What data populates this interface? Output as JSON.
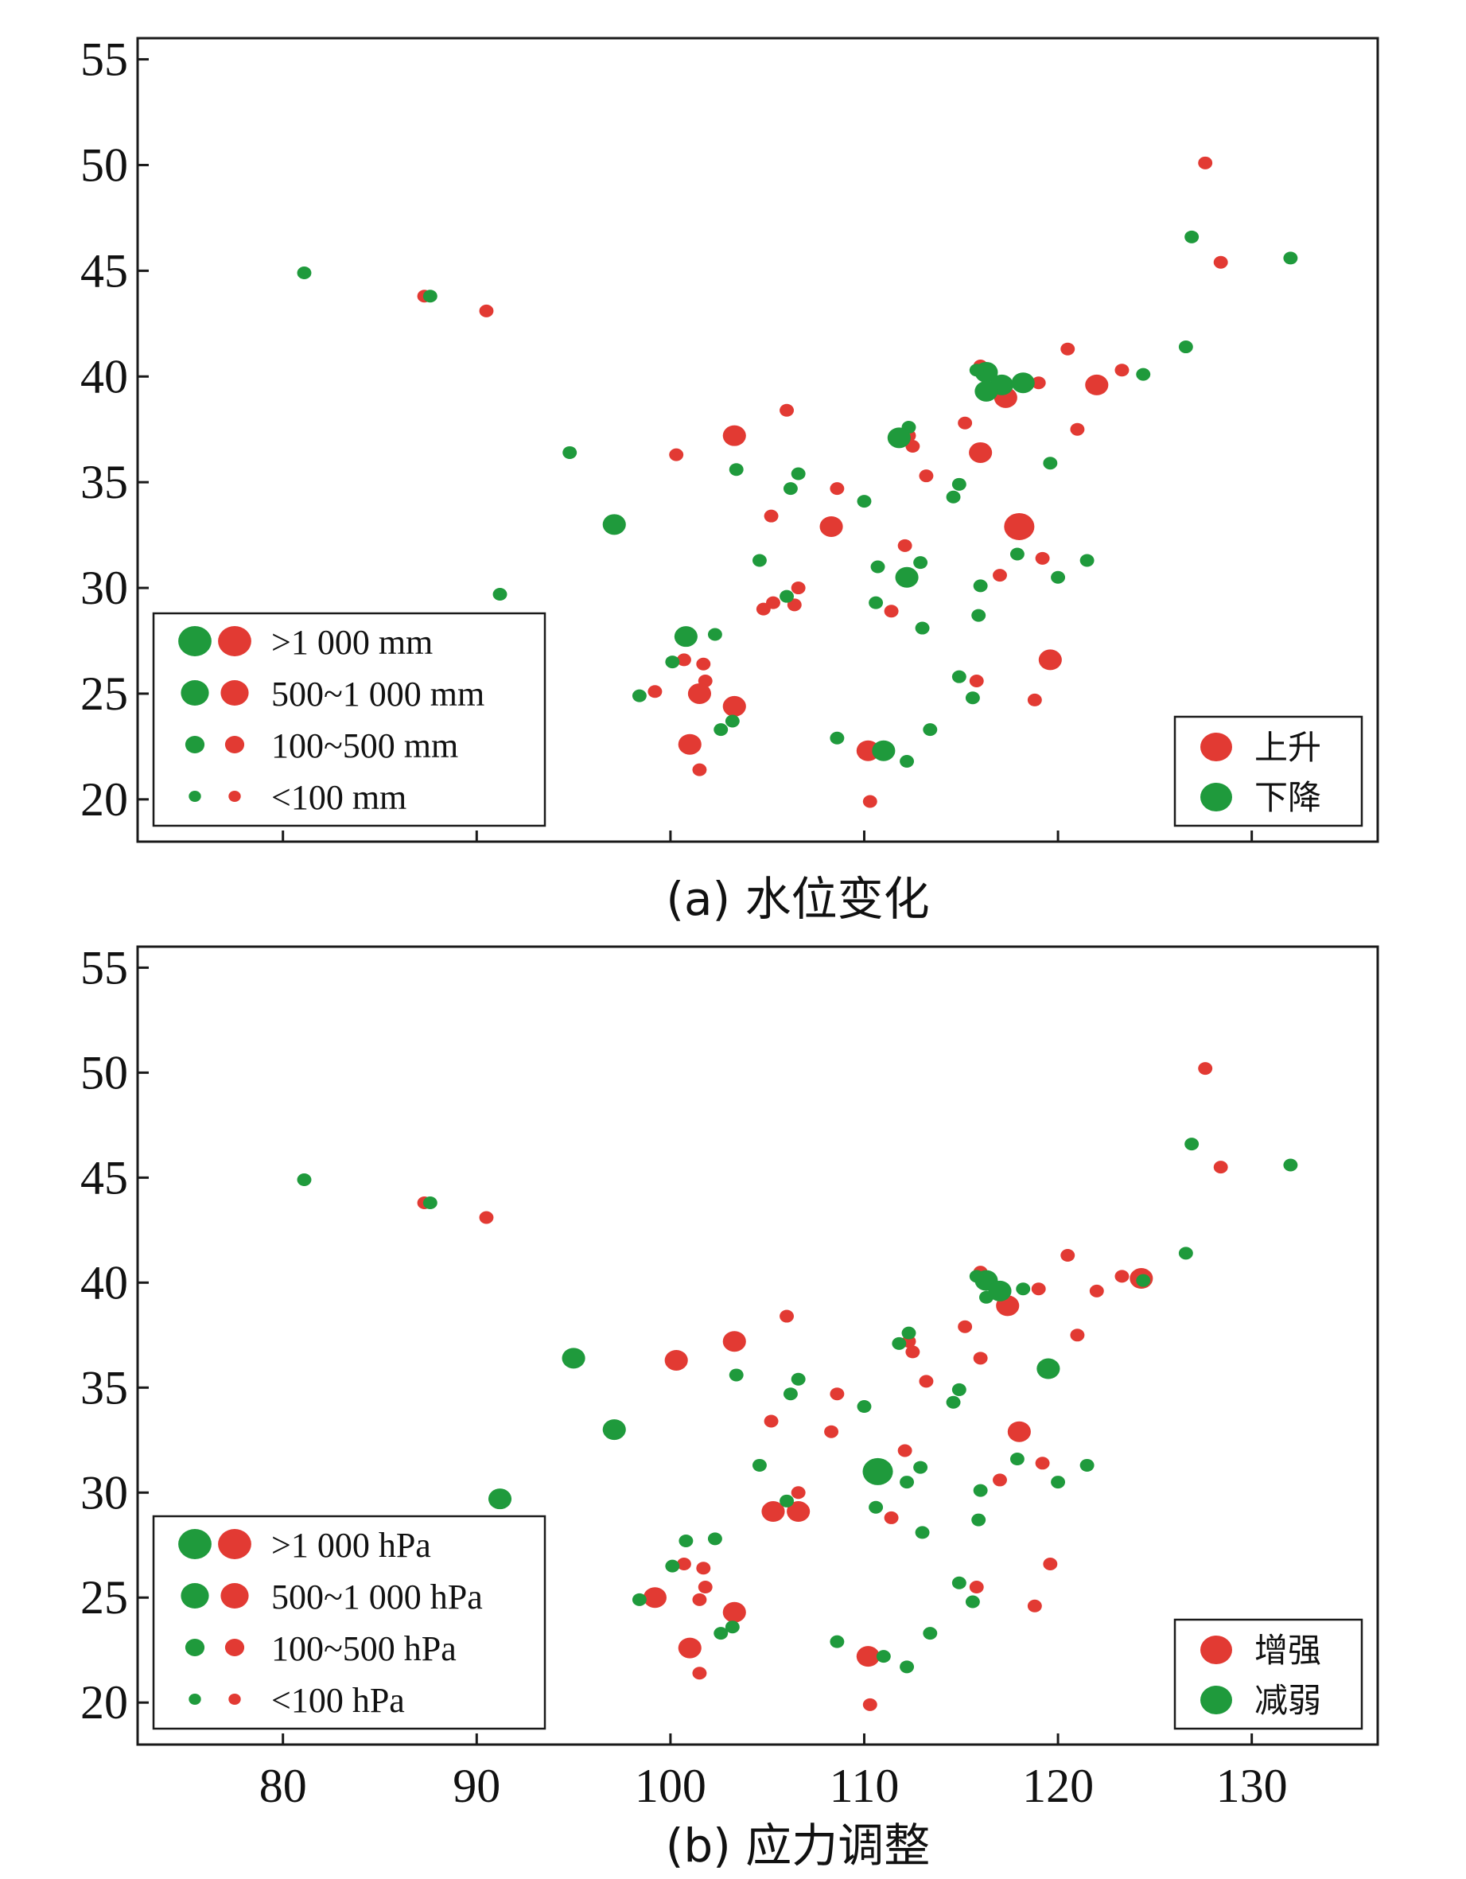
{
  "colors": {
    "red": "#e23a33",
    "green": "#1f9a3c",
    "frame": "#1a1a1a"
  },
  "shared_axes": {
    "x_ticks": [
      "80",
      "90",
      "100",
      "110",
      "120",
      "130"
    ],
    "y_ticks": [
      "20",
      "25",
      "30",
      "35",
      "40",
      "45",
      "50",
      "55"
    ],
    "xlim": [
      72.5,
      136.5
    ],
    "ylim": [
      18,
      56
    ]
  },
  "chart_data": [
    {
      "type": "scatter",
      "panel": "a",
      "caption": "(a) 水位变化",
      "xlim": [
        72.5,
        136.5
      ],
      "ylim": [
        18,
        56
      ],
      "size_legend": {
        "position": "bottom-left",
        "labels": [
          ">1 000 mm",
          "500~1 000 mm",
          "100~500 mm",
          "<100 mm"
        ]
      },
      "color_legend": {
        "position": "bottom-right",
        "labels": [
          "上升",
          "下降"
        ]
      },
      "series": [
        {
          "name": "上升",
          "color": "red",
          "points": [
            [
              127.6,
              50.1,
              0
            ],
            [
              128.4,
              45.4,
              0
            ],
            [
              87.3,
              43.8,
              0
            ],
            [
              90.5,
              43.1,
              0
            ],
            [
              120.5,
              41.3,
              0
            ],
            [
              123.3,
              40.3,
              0
            ],
            [
              122,
              39.6,
              1
            ],
            [
              117.3,
              39,
              1
            ],
            [
              119,
              39.7,
              0
            ],
            [
              106,
              38.4,
              0
            ],
            [
              103.3,
              37.2,
              1
            ],
            [
              112.3,
              37.2,
              0
            ],
            [
              121,
              37.5,
              0
            ],
            [
              100.3,
              36.3,
              0
            ],
            [
              112.5,
              36.7,
              0
            ],
            [
              116,
              36.4,
              1
            ],
            [
              115.2,
              37.8,
              0
            ],
            [
              113.2,
              35.3,
              0
            ],
            [
              108.6,
              34.7,
              0
            ],
            [
              105.2,
              33.4,
              0
            ],
            [
              108.3,
              32.9,
              1
            ],
            [
              118,
              32.9,
              2
            ],
            [
              112.1,
              32,
              0
            ],
            [
              119.2,
              31.4,
              0
            ],
            [
              117,
              30.6,
              0
            ],
            [
              106.6,
              30,
              0
            ],
            [
              105.3,
              29.3,
              0
            ],
            [
              104.8,
              29,
              0
            ],
            [
              106.4,
              29.2,
              0
            ],
            [
              111.4,
              28.9,
              0
            ],
            [
              119.6,
              26.6,
              1
            ],
            [
              100.7,
              26.6,
              0
            ],
            [
              101.7,
              26.4,
              0
            ],
            [
              101.8,
              25.6,
              0
            ],
            [
              115.8,
              25.6,
              0
            ],
            [
              99.2,
              25.1,
              0
            ],
            [
              101.5,
              25,
              1
            ],
            [
              103.3,
              24.4,
              1
            ],
            [
              118.8,
              24.7,
              0
            ],
            [
              101,
              22.6,
              1
            ],
            [
              110.2,
              22.3,
              1
            ],
            [
              101.5,
              21.4,
              0
            ],
            [
              110.3,
              19.9,
              0
            ],
            [
              116,
              40.5,
              0
            ]
          ]
        },
        {
          "name": "下降",
          "color": "green",
          "points": [
            [
              81.1,
              44.9,
              0
            ],
            [
              87.6,
              43.8,
              0
            ],
            [
              126.9,
              46.6,
              0
            ],
            [
              132,
              45.6,
              0
            ],
            [
              126.6,
              41.4,
              0
            ],
            [
              124.4,
              40.1,
              0
            ],
            [
              116.3,
              40.2,
              1
            ],
            [
              117.1,
              39.6,
              1
            ],
            [
              118.2,
              39.7,
              1
            ],
            [
              116.3,
              39.3,
              1
            ],
            [
              115.8,
              40.3,
              0
            ],
            [
              112.3,
              37.6,
              0
            ],
            [
              111.8,
              37.1,
              1
            ],
            [
              94.8,
              36.4,
              0
            ],
            [
              103.4,
              35.6,
              0
            ],
            [
              106.6,
              35.4,
              0
            ],
            [
              106.2,
              34.7,
              0
            ],
            [
              114.9,
              34.9,
              0
            ],
            [
              114.6,
              34.3,
              0
            ],
            [
              110,
              34.1,
              0
            ],
            [
              119.6,
              35.9,
              0
            ],
            [
              97.1,
              33,
              1
            ],
            [
              104.6,
              31.3,
              0
            ],
            [
              112.9,
              31.2,
              0
            ],
            [
              110.7,
              31,
              0
            ],
            [
              112.2,
              30.5,
              1
            ],
            [
              116,
              30.1,
              0
            ],
            [
              121.5,
              31.3,
              0
            ],
            [
              120,
              30.5,
              0
            ],
            [
              117.9,
              31.6,
              0
            ],
            [
              106,
              29.6,
              0
            ],
            [
              110.6,
              29.3,
              0
            ],
            [
              115.9,
              28.7,
              0
            ],
            [
              113,
              28.1,
              0
            ],
            [
              100.8,
              27.7,
              1
            ],
            [
              102.3,
              27.8,
              0
            ],
            [
              100.1,
              26.5,
              0
            ],
            [
              98.4,
              24.9,
              0
            ],
            [
              114.9,
              25.8,
              0
            ],
            [
              115.6,
              24.8,
              0
            ],
            [
              102.6,
              23.3,
              0
            ],
            [
              103.2,
              23.7,
              0
            ],
            [
              113.4,
              23.3,
              0
            ],
            [
              108.6,
              22.9,
              0
            ],
            [
              111,
              22.3,
              1
            ],
            [
              112.2,
              21.8,
              0
            ],
            [
              91.2,
              29.7,
              0
            ]
          ]
        }
      ]
    },
    {
      "type": "scatter",
      "panel": "b",
      "caption": "(b) 应力调整",
      "xlim": [
        72.5,
        136.5
      ],
      "ylim": [
        18,
        56
      ],
      "size_legend": {
        "position": "bottom-left",
        "labels": [
          ">1 000 hPa",
          "500~1 000 hPa",
          "100~500 hPa",
          "<100 hPa"
        ]
      },
      "color_legend": {
        "position": "bottom-right",
        "labels": [
          "增强",
          "减弱"
        ]
      },
      "series": [
        {
          "name": "增强",
          "color": "red",
          "points": [
            [
              127.6,
              50.2,
              0
            ],
            [
              128.4,
              45.5,
              0
            ],
            [
              87.3,
              43.8,
              0
            ],
            [
              90.5,
              43.1,
              0
            ],
            [
              120.5,
              41.3,
              0
            ],
            [
              123.3,
              40.3,
              0
            ],
            [
              122,
              39.6,
              0
            ],
            [
              117.4,
              38.9,
              1
            ],
            [
              119,
              39.7,
              0
            ],
            [
              116,
              40.5,
              0
            ],
            [
              106,
              38.4,
              0
            ],
            [
              103.3,
              37.2,
              1
            ],
            [
              112.3,
              37.2,
              0
            ],
            [
              121,
              37.5,
              0
            ],
            [
              100.3,
              36.3,
              1
            ],
            [
              112.5,
              36.7,
              0
            ],
            [
              116,
              36.4,
              0
            ],
            [
              115.2,
              37.9,
              0
            ],
            [
              113.2,
              35.3,
              0
            ],
            [
              108.6,
              34.7,
              0
            ],
            [
              105.2,
              33.4,
              0
            ],
            [
              108.3,
              32.9,
              0
            ],
            [
              118,
              32.9,
              1
            ],
            [
              112.1,
              32,
              0
            ],
            [
              119.2,
              31.4,
              0
            ],
            [
              117,
              30.6,
              0
            ],
            [
              106.6,
              30,
              0
            ],
            [
              105.3,
              29.1,
              1
            ],
            [
              106.6,
              29.1,
              1
            ],
            [
              111.4,
              28.8,
              0
            ],
            [
              119.6,
              26.6,
              0
            ],
            [
              100.7,
              26.6,
              0
            ],
            [
              101.7,
              26.4,
              0
            ],
            [
              101.8,
              25.5,
              0
            ],
            [
              115.8,
              25.5,
              0
            ],
            [
              99.2,
              25,
              1
            ],
            [
              101.5,
              24.9,
              0
            ],
            [
              103.3,
              24.3,
              1
            ],
            [
              118.8,
              24.6,
              0
            ],
            [
              101,
              22.6,
              1
            ],
            [
              110.2,
              22.2,
              1
            ],
            [
              101.5,
              21.4,
              0
            ],
            [
              110.3,
              19.9,
              0
            ],
            [
              124.3,
              40.2,
              1
            ]
          ]
        },
        {
          "name": "减弱",
          "color": "green",
          "points": [
            [
              81.1,
              44.9,
              0
            ],
            [
              87.6,
              43.8,
              0
            ],
            [
              126.9,
              46.6,
              0
            ],
            [
              132,
              45.6,
              0
            ],
            [
              126.6,
              41.4,
              0
            ],
            [
              124.4,
              40.1,
              0
            ],
            [
              116.3,
              40.1,
              1
            ],
            [
              117,
              39.6,
              1
            ],
            [
              118.2,
              39.7,
              0
            ],
            [
              116.3,
              39.3,
              0
            ],
            [
              115.8,
              40.3,
              0
            ],
            [
              112.3,
              37.6,
              0
            ],
            [
              111.8,
              37.1,
              0
            ],
            [
              95,
              36.4,
              1
            ],
            [
              103.4,
              35.6,
              0
            ],
            [
              106.6,
              35.4,
              0
            ],
            [
              106.2,
              34.7,
              0
            ],
            [
              114.9,
              34.9,
              0
            ],
            [
              114.6,
              34.3,
              0
            ],
            [
              110,
              34.1,
              0
            ],
            [
              119.5,
              35.9,
              1
            ],
            [
              97.1,
              33,
              1
            ],
            [
              104.6,
              31.3,
              0
            ],
            [
              112.9,
              31.2,
              0
            ],
            [
              110.7,
              31,
              2
            ],
            [
              112.2,
              30.5,
              0
            ],
            [
              116,
              30.1,
              0
            ],
            [
              121.5,
              31.3,
              0
            ],
            [
              120,
              30.5,
              0
            ],
            [
              117.9,
              31.6,
              0
            ],
            [
              106,
              29.6,
              0
            ],
            [
              110.6,
              29.3,
              0
            ],
            [
              115.9,
              28.7,
              0
            ],
            [
              113,
              28.1,
              0
            ],
            [
              100.8,
              27.7,
              0
            ],
            [
              102.3,
              27.8,
              0
            ],
            [
              100.1,
              26.5,
              0
            ],
            [
              98.4,
              24.9,
              0
            ],
            [
              114.9,
              25.7,
              0
            ],
            [
              115.6,
              24.8,
              0
            ],
            [
              102.6,
              23.3,
              0
            ],
            [
              103.2,
              23.6,
              0
            ],
            [
              113.4,
              23.3,
              0
            ],
            [
              108.6,
              22.9,
              0
            ],
            [
              111,
              22.2,
              0
            ],
            [
              112.2,
              21.7,
              0
            ],
            [
              91.2,
              29.7,
              1
            ]
          ]
        }
      ]
    }
  ]
}
